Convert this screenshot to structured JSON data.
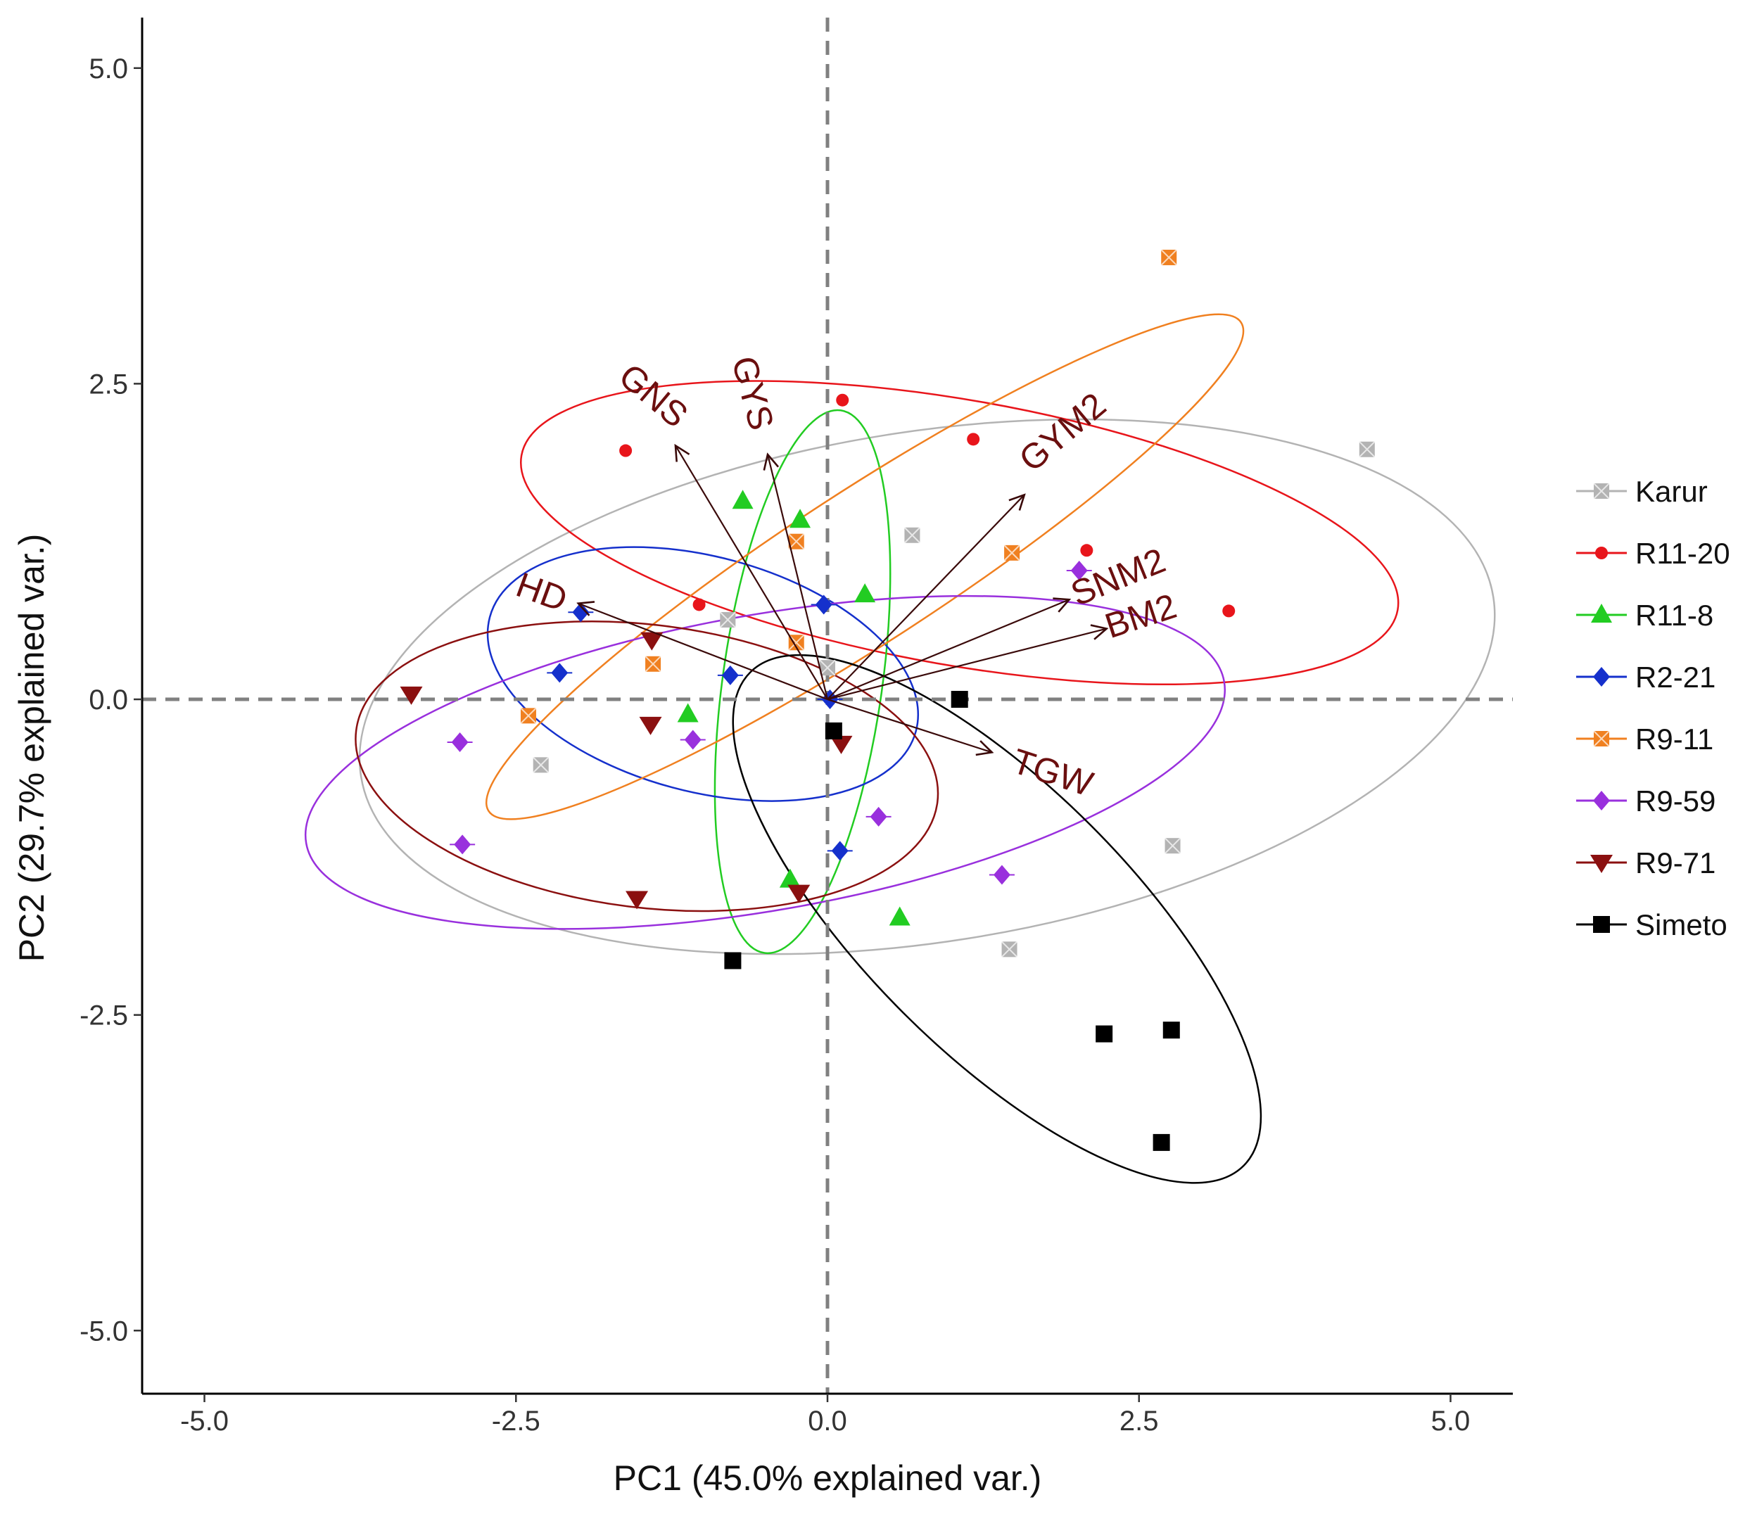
{
  "chart_data": {
    "type": "scatter",
    "subtype": "pca-biplot",
    "title": "",
    "xlabel": "PC1 (45.0% explained var.)",
    "ylabel": "PC2 (29.7% explained var.)",
    "xlim": [
      -5.5,
      5.5
    ],
    "ylim": [
      -5.5,
      5.4
    ],
    "xticks": [
      -5.0,
      -2.5,
      0.0,
      2.5,
      5.0
    ],
    "yticks": [
      -5.0,
      -2.5,
      0.0,
      2.5,
      5.0
    ],
    "xtick_labels": [
      "-5.0",
      "-2.5",
      "0.0",
      "2.5",
      "5.0"
    ],
    "ytick_labels": [
      "-5.0",
      "-2.5",
      "0.0",
      "2.5",
      "5.0"
    ],
    "grid": false,
    "legend_position": "right",
    "reference_lines": {
      "x": 0,
      "y": 0,
      "style": "dashed",
      "color": "#808080"
    },
    "series": [
      {
        "name": "Karur",
        "color": "#b3b3b3",
        "marker": "square-cross",
        "points": [
          [
            4.33,
            1.98
          ],
          [
            0.68,
            1.3
          ],
          [
            -0.8,
            0.63
          ],
          [
            -2.3,
            -0.52
          ],
          [
            2.77,
            -1.16
          ],
          [
            1.46,
            -1.98
          ],
          [
            0.0,
            0.25
          ]
        ],
        "ellipse": {
          "cx": 0.8,
          "cy": 0.1,
          "rx": 4.6,
          "ry": 2.02,
          "angle": 9
        }
      },
      {
        "name": "R11-20",
        "color": "#e8151b",
        "marker": "circle",
        "points": [
          [
            -1.62,
            1.97
          ],
          [
            0.12,
            2.37
          ],
          [
            1.17,
            2.06
          ],
          [
            2.08,
            1.18
          ],
          [
            3.22,
            0.7
          ],
          [
            -1.03,
            0.75
          ]
        ],
        "ellipse": {
          "cx": 1.06,
          "cy": 1.32,
          "rx": 3.57,
          "ry": 1.05,
          "angle": -10
        }
      },
      {
        "name": "R11-8",
        "color": "#22cc22",
        "marker": "triangle-up",
        "points": [
          [
            -0.68,
            1.57
          ],
          [
            -0.22,
            1.42
          ],
          [
            0.3,
            0.83
          ],
          [
            -1.12,
            -0.12
          ],
          [
            -0.3,
            -1.43
          ],
          [
            0.58,
            -1.73
          ]
        ],
        "ellipse": {
          "cx": -0.2,
          "cy": 0.14,
          "rx": 0.64,
          "ry": 2.17,
          "angle": -8
        }
      },
      {
        "name": "R2-21",
        "color": "#1530cc",
        "marker": "diamond-cross",
        "points": [
          [
            -1.98,
            0.69
          ],
          [
            -2.15,
            0.21
          ],
          [
            -0.78,
            0.19
          ],
          [
            -0.03,
            0.75
          ],
          [
            0.02,
            0.0
          ],
          [
            0.1,
            -1.2
          ]
        ],
        "ellipse": {
          "cx": -1.0,
          "cy": 0.2,
          "rx": 1.77,
          "ry": 0.93,
          "angle": -15
        }
      },
      {
        "name": "R9-11",
        "color": "#f08020",
        "marker": "square-cross",
        "points": [
          [
            2.74,
            3.5
          ],
          [
            -0.25,
            1.25
          ],
          [
            1.48,
            1.16
          ],
          [
            -0.25,
            0.45
          ],
          [
            -1.4,
            0.28
          ],
          [
            -2.4,
            -0.13
          ]
        ],
        "ellipse": {
          "cx": 0.3,
          "cy": 1.05,
          "rx": 3.6,
          "ry": 0.6,
          "angle": 33
        }
      },
      {
        "name": "R9-59",
        "color": "#9930dd",
        "marker": "diamond-cross",
        "points": [
          [
            2.02,
            1.02
          ],
          [
            -2.95,
            -0.34
          ],
          [
            -2.93,
            -1.15
          ],
          [
            -1.08,
            -0.32
          ],
          [
            0.41,
            -0.93
          ],
          [
            1.4,
            -1.39
          ]
        ],
        "ellipse": {
          "cx": -0.5,
          "cy": -0.5,
          "rx": 3.74,
          "ry": 1.17,
          "angle": 10
        }
      },
      {
        "name": "R9-71",
        "color": "#8b1010",
        "marker": "triangle-down",
        "points": [
          [
            -3.34,
            0.04
          ],
          [
            -1.41,
            0.47
          ],
          [
            -1.42,
            -0.2
          ],
          [
            -1.53,
            -1.58
          ],
          [
            -0.23,
            -1.53
          ],
          [
            0.11,
            -0.35
          ]
        ],
        "ellipse": {
          "cx": -1.45,
          "cy": -0.53,
          "rx": 2.35,
          "ry": 1.12,
          "angle": -7
        }
      },
      {
        "name": "Simeto",
        "color": "#000000",
        "marker": "square",
        "points": [
          [
            1.06,
            0.0
          ],
          [
            0.05,
            -0.25
          ],
          [
            -0.76,
            -2.07
          ],
          [
            2.22,
            -2.65
          ],
          [
            2.76,
            -2.62
          ],
          [
            2.68,
            -3.51
          ]
        ],
        "ellipse": {
          "cx": 1.36,
          "cy": -1.74,
          "rx": 2.8,
          "ry": 1.05,
          "angle": -45
        }
      }
    ],
    "vectors": [
      {
        "name": "GNS",
        "x": -1.22,
        "y": 2.01,
        "label_x": -1.41,
        "label_y": 2.39,
        "label_angle": 40
      },
      {
        "name": "GYS",
        "x": -0.48,
        "y": 1.94,
        "label_x": -0.62,
        "label_y": 2.42,
        "label_angle": 75
      },
      {
        "name": "GYM2",
        "x": 1.58,
        "y": 1.62,
        "label_x": 1.9,
        "label_y": 2.1,
        "label_angle": -40
      },
      {
        "name": "SNM2",
        "x": 1.94,
        "y": 0.79,
        "label_x": 2.34,
        "label_y": 0.95,
        "label_angle": -22
      },
      {
        "name": "BM2",
        "x": 2.24,
        "y": 0.56,
        "label_x": 2.52,
        "label_y": 0.64,
        "label_angle": -18
      },
      {
        "name": "HD",
        "x": -2.0,
        "y": 0.76,
        "label_x": -2.3,
        "label_y": 0.83,
        "label_angle": 20
      },
      {
        "name": "TGW",
        "x": 1.32,
        "y": -0.42,
        "label_x": 1.8,
        "label_y": -0.6,
        "label_angle": 18
      }
    ]
  }
}
